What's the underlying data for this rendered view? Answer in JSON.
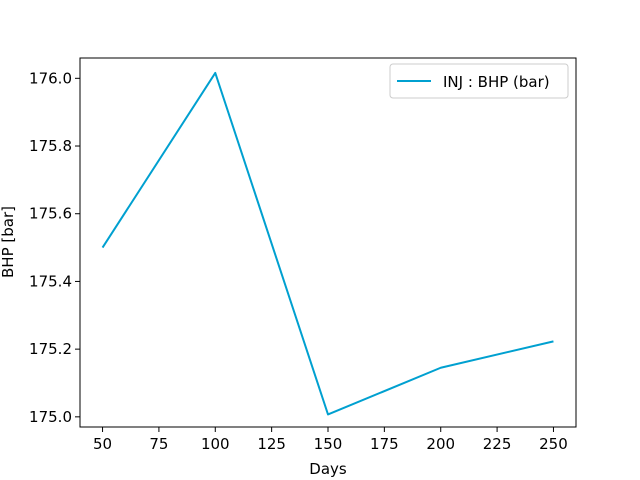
{
  "chart_data": {
    "type": "line",
    "xlabel": "Days",
    "ylabel": "BHP [bar]",
    "xlim": [
      40,
      260
    ],
    "ylim": [
      174.97,
      176.06
    ],
    "xticks": [
      50,
      75,
      100,
      125,
      150,
      175,
      200,
      225,
      250
    ],
    "yticks": [
      "175.0",
      "175.2",
      "175.4",
      "175.6",
      "175.8",
      "176.0"
    ],
    "grid": false,
    "legend_position": "top-right",
    "series": [
      {
        "name": "INJ : BHP (bar)",
        "color": "#00a0d0",
        "x": [
          50,
          100,
          150,
          200,
          250
        ],
        "y": [
          175.5,
          176.016,
          175.007,
          175.145,
          175.223
        ]
      }
    ]
  }
}
